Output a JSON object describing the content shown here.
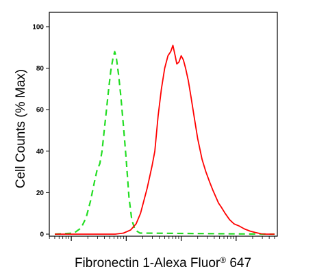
{
  "chart_data": {
    "type": "line",
    "xlabel_main": "Fibronectin 1-Alexa Fluor",
    "xlabel_symbol": "®",
    "xlabel_tail": " 647",
    "ylabel": "Cell Counts (% Max)",
    "ylim": [
      0,
      100
    ],
    "yticks": [
      0,
      20,
      40,
      60,
      80,
      100
    ],
    "x_scale": "log",
    "xlim_decades": [
      -0.4,
      3.75
    ],
    "x_tick_labels_shown": false,
    "grid": false,
    "series": [
      {
        "style": "dashed",
        "color": "#22dd22",
        "points": [
          [
            -0.3,
            0
          ],
          [
            0.05,
            0.5
          ],
          [
            0.18,
            3
          ],
          [
            0.27,
            8
          ],
          [
            0.35,
            16
          ],
          [
            0.42,
            25
          ],
          [
            0.47,
            31
          ],
          [
            0.52,
            34
          ],
          [
            0.56,
            40
          ],
          [
            0.6,
            50
          ],
          [
            0.64,
            60
          ],
          [
            0.68,
            70
          ],
          [
            0.72,
            79
          ],
          [
            0.76,
            85
          ],
          [
            0.79,
            88
          ],
          [
            0.82,
            85
          ],
          [
            0.86,
            77
          ],
          [
            0.9,
            67
          ],
          [
            0.95,
            52
          ],
          [
            1.0,
            36
          ],
          [
            1.05,
            18
          ],
          [
            1.1,
            7
          ],
          [
            1.16,
            2
          ],
          [
            1.25,
            0.5
          ],
          [
            3.7,
            0
          ]
        ]
      },
      {
        "style": "solid",
        "color": "#ff0000",
        "points": [
          [
            -0.3,
            0
          ],
          [
            0.8,
            0
          ],
          [
            0.95,
            0.5
          ],
          [
            1.08,
            2
          ],
          [
            1.18,
            5
          ],
          [
            1.26,
            10
          ],
          [
            1.32,
            16
          ],
          [
            1.38,
            22
          ],
          [
            1.43,
            28
          ],
          [
            1.47,
            33
          ],
          [
            1.52,
            40
          ],
          [
            1.58,
            57
          ],
          [
            1.64,
            70
          ],
          [
            1.7,
            80
          ],
          [
            1.76,
            86
          ],
          [
            1.81,
            88
          ],
          [
            1.85,
            91
          ],
          [
            1.89,
            86
          ],
          [
            1.92,
            82
          ],
          [
            1.96,
            83
          ],
          [
            2.0,
            86
          ],
          [
            2.04,
            84
          ],
          [
            2.08,
            80
          ],
          [
            2.13,
            74
          ],
          [
            2.18,
            66
          ],
          [
            2.24,
            56
          ],
          [
            2.3,
            46
          ],
          [
            2.38,
            36
          ],
          [
            2.45,
            30
          ],
          [
            2.52,
            25
          ],
          [
            2.58,
            21
          ],
          [
            2.63,
            18
          ],
          [
            2.68,
            15
          ],
          [
            2.73,
            13
          ],
          [
            2.8,
            10
          ],
          [
            2.88,
            7
          ],
          [
            2.96,
            5
          ],
          [
            3.05,
            4
          ],
          [
            3.15,
            2.5
          ],
          [
            3.25,
            1.5
          ],
          [
            3.35,
            0.8
          ],
          [
            3.45,
            0.2
          ],
          [
            3.55,
            0
          ],
          [
            3.7,
            0
          ]
        ]
      }
    ]
  }
}
